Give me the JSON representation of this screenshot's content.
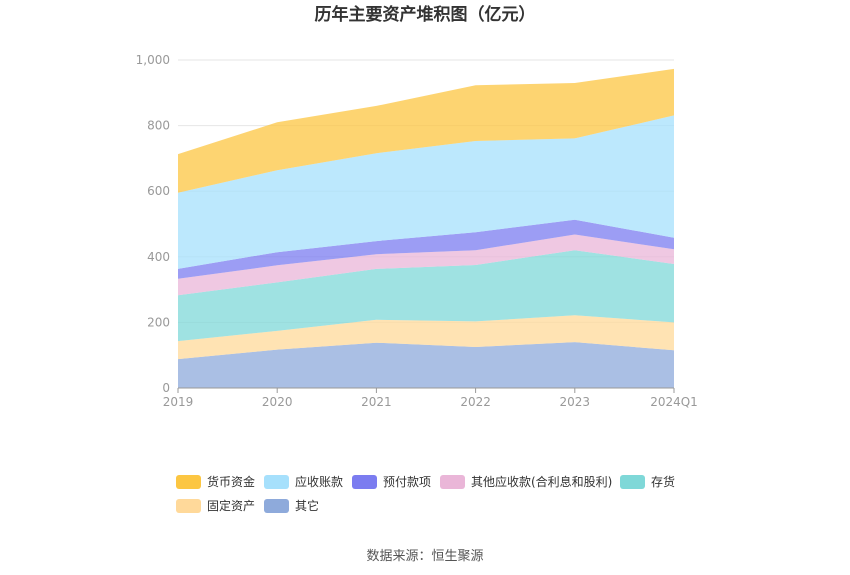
{
  "chart_data": {
    "type": "area",
    "stacked": true,
    "title": "历年主要资产堆积图（亿元）",
    "categories": [
      "2019",
      "2020",
      "2021",
      "2022",
      "2023",
      "2024Q1"
    ],
    "y_tick_labels": [
      "0",
      "200",
      "400",
      "600",
      "800",
      "1,000"
    ],
    "ylim": [
      0,
      1000
    ],
    "grid": true,
    "legend_position": "bottom",
    "series": [
      {
        "name": "其它",
        "color": "#8eaadb",
        "values": [
          88,
          117,
          138,
          125,
          140,
          115
        ]
      },
      {
        "name": "固定资产",
        "color": "#ffd99a",
        "values": [
          55,
          57,
          70,
          78,
          82,
          85
        ]
      },
      {
        "name": "存货",
        "color": "#7fd8d8",
        "values": [
          140,
          148,
          155,
          172,
          198,
          178
        ]
      },
      {
        "name": "其他应收款(合利息和股利)",
        "color": "#eab6d8",
        "values": [
          50,
          52,
          45,
          45,
          48,
          45
        ]
      },
      {
        "name": "预付款项",
        "color": "#7b7cf0",
        "values": [
          30,
          40,
          40,
          55,
          45,
          35
        ]
      },
      {
        "name": "应收账款",
        "color": "#a6e0fc",
        "values": [
          232,
          250,
          268,
          278,
          248,
          373
        ]
      },
      {
        "name": "货币资金",
        "color": "#fcc642",
        "values": [
          118,
          146,
          144,
          170,
          169,
          142
        ]
      }
    ],
    "legend_order": [
      "货币资金",
      "应收账款",
      "预付款项",
      "其他应收款(合利息和股利)",
      "存货",
      "固定资产",
      "其它"
    ]
  },
  "footer": {
    "source": "数据来源：恒生聚源"
  }
}
